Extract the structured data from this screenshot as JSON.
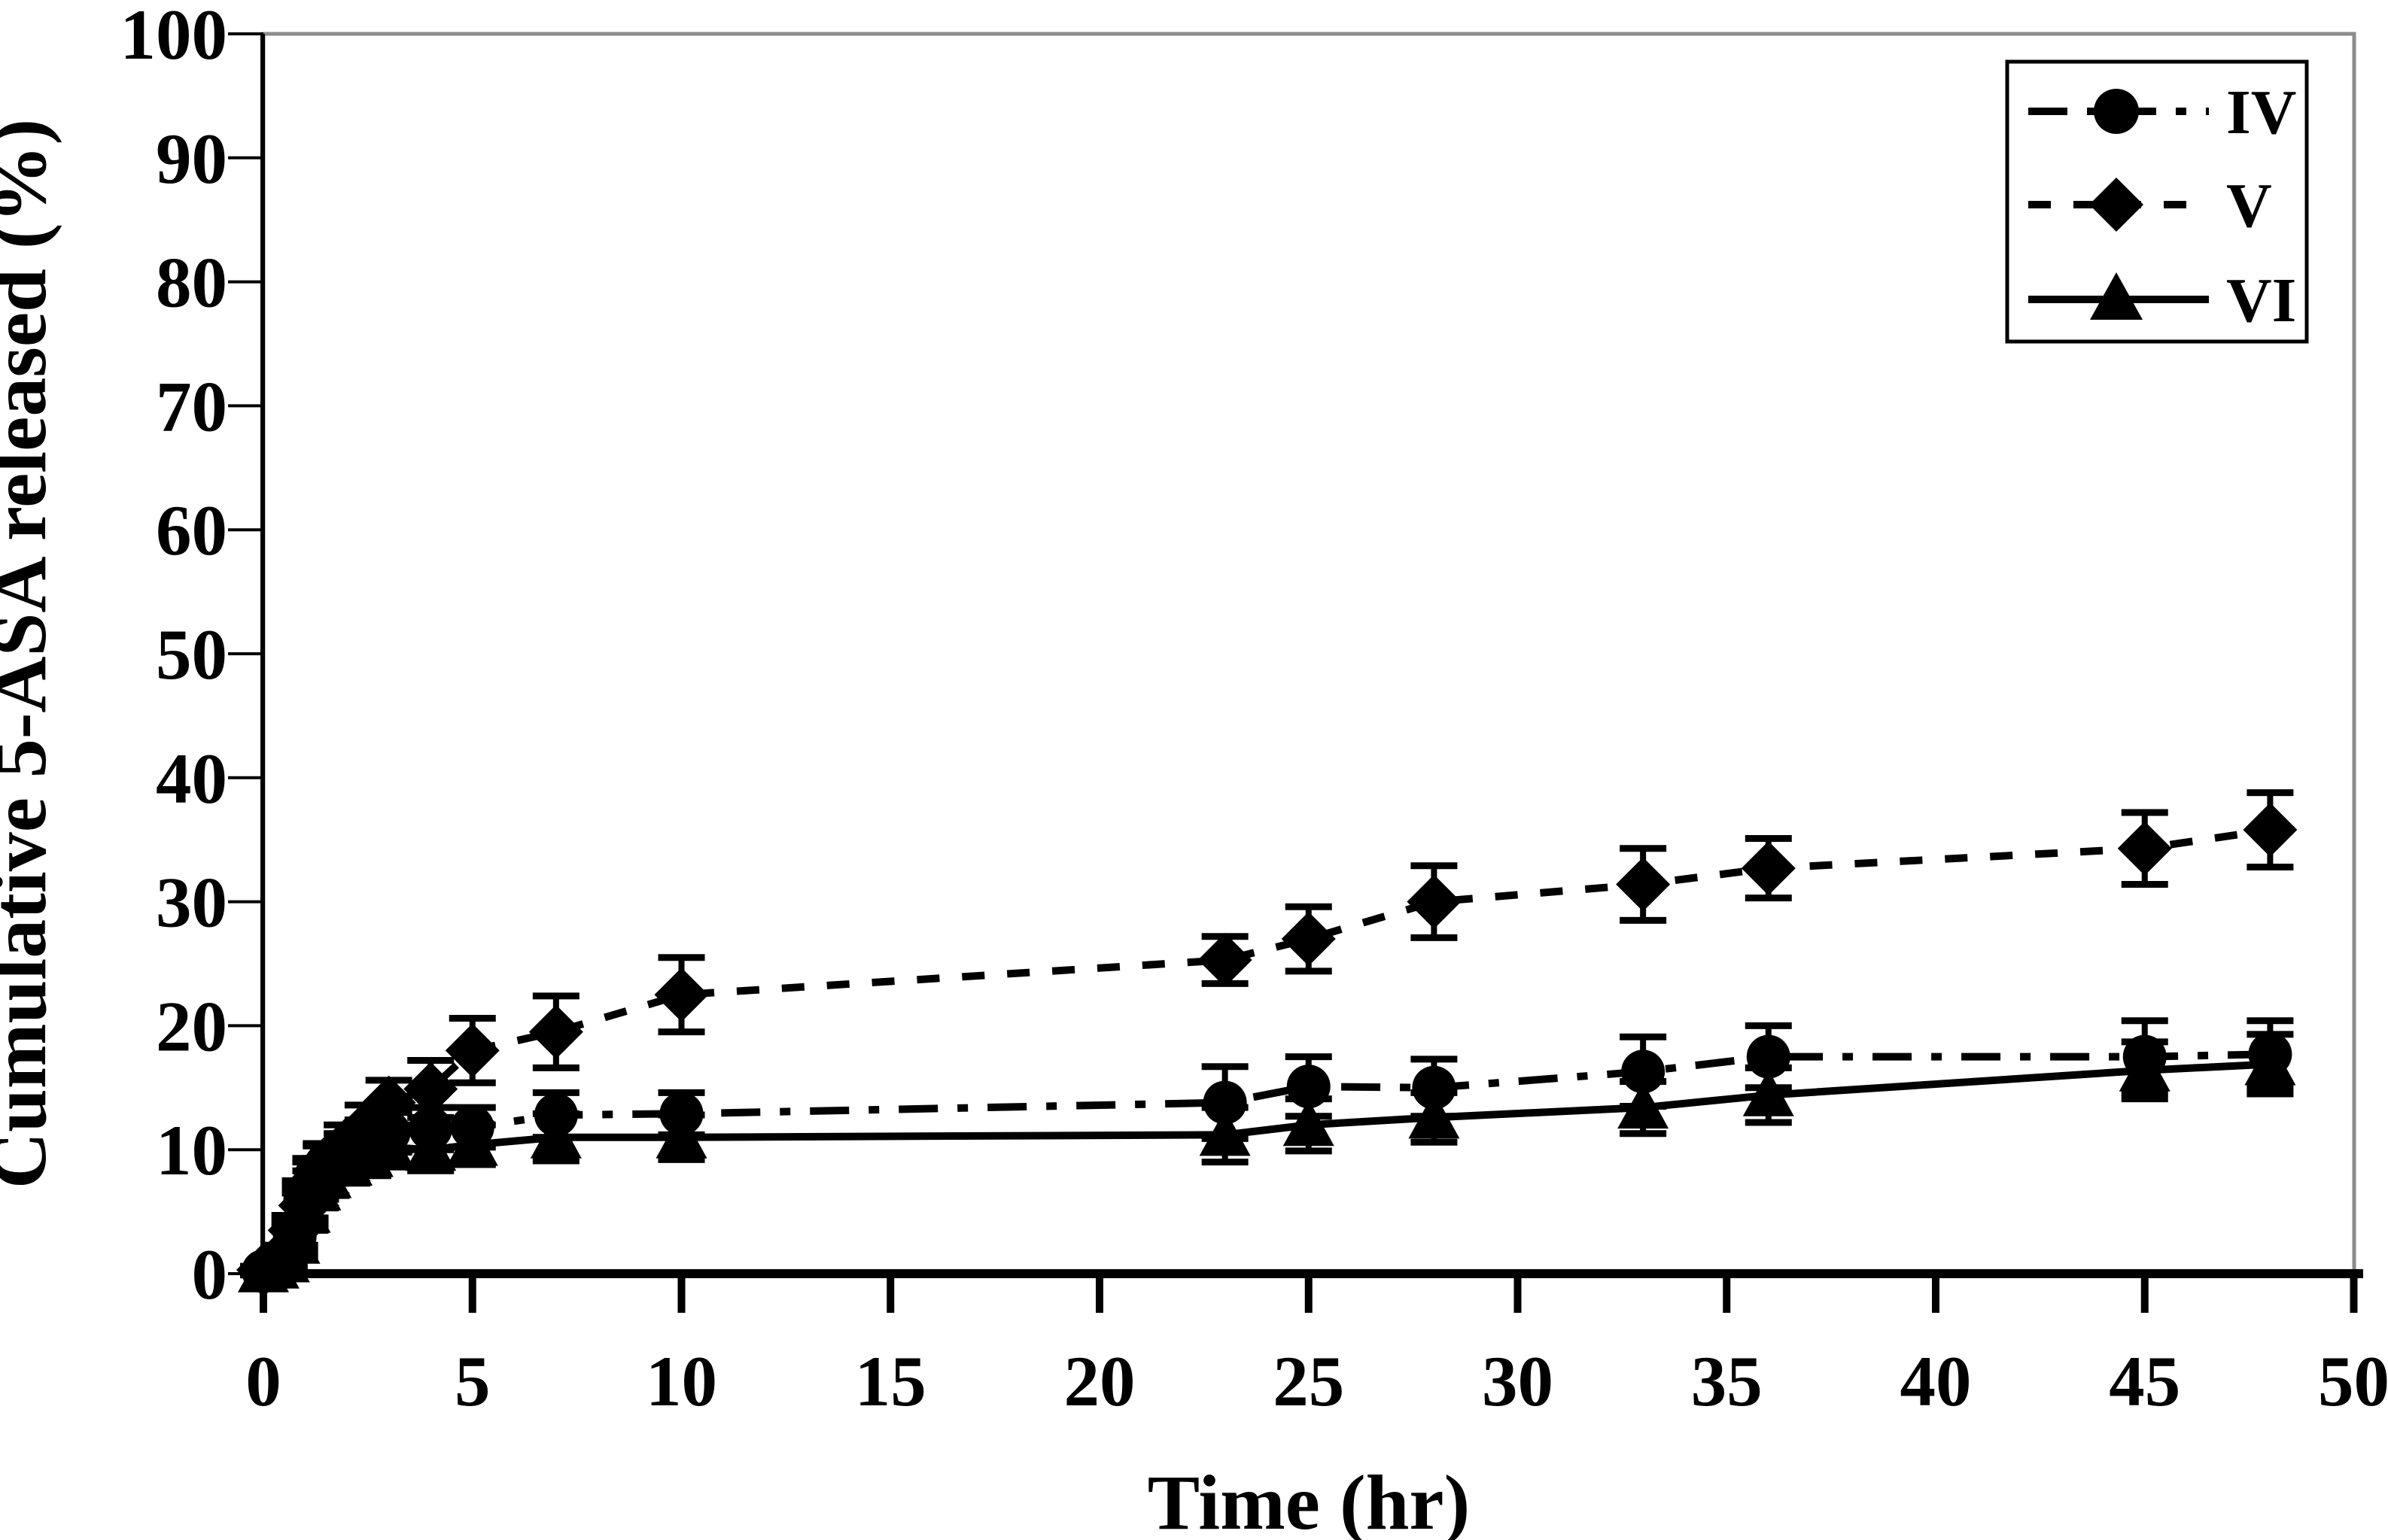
{
  "figure": {
    "background": "#ffffff",
    "plot_border_color": "#8c8c8c",
    "axis_color": "#000000",
    "marker_color": "#000000"
  },
  "legend": {
    "items": [
      {
        "label": "IV",
        "marker": "circle",
        "line_style": "dash-dot"
      },
      {
        "label": "V",
        "marker": "diamond",
        "line_style": "dashed"
      },
      {
        "label": "VI",
        "marker": "triangle",
        "line_style": "solid"
      }
    ]
  },
  "chart_data": {
    "type": "line",
    "title": "",
    "xlabel": "Time (hr)",
    "ylabel": "Cumulative 5-ASA released (%)",
    "xlim": [
      0,
      50
    ],
    "ylim": [
      0,
      100
    ],
    "xticks": [
      0,
      5,
      10,
      15,
      20,
      25,
      30,
      35,
      40,
      45,
      50
    ],
    "yticks": [
      0,
      10,
      20,
      30,
      40,
      50,
      60,
      70,
      80,
      90,
      100
    ],
    "grid": false,
    "legend_position": "top-right",
    "error_bars": true,
    "x": [
      0,
      0.25,
      0.5,
      0.75,
      1,
      1.25,
      1.5,
      2,
      2.5,
      3,
      4,
      5,
      7,
      10,
      23,
      25,
      28,
      33,
      36,
      45,
      48
    ],
    "series": [
      {
        "name": "IV",
        "marker": "circle",
        "line_style": "dash-dot",
        "values": [
          0.2,
          0.6,
          1.2,
          3.0,
          6.0,
          7.8,
          8.8,
          9.8,
          10.8,
          11.4,
          11.7,
          11.8,
          12.8,
          12.9,
          13.8,
          15.1,
          15.0,
          16.3,
          17.5,
          17.5,
          17.7
        ],
        "errors": [
          0.3,
          0.5,
          0.8,
          1.2,
          1.5,
          1.5,
          1.5,
          1.5,
          1.6,
          1.6,
          1.7,
          1.6,
          1.8,
          1.7,
          2.9,
          2.4,
          2.3,
          2.8,
          2.5,
          2.9,
          2.7
        ]
      },
      {
        "name": "V",
        "marker": "diamond",
        "line_style": "dashed",
        "values": [
          0.3,
          0.8,
          1.5,
          3.5,
          5.5,
          7.5,
          9.0,
          10.5,
          12.0,
          13.8,
          14.9,
          18.0,
          19.5,
          22.5,
          25.3,
          27.0,
          30.0,
          31.4,
          32.7,
          34.3,
          35.8
        ],
        "errors": [
          0.3,
          0.5,
          0.8,
          1.2,
          1.5,
          1.5,
          1.5,
          1.5,
          1.6,
          1.8,
          2.3,
          2.6,
          2.9,
          3.0,
          1.9,
          2.6,
          2.9,
          2.9,
          2.4,
          2.9,
          3.0
        ]
      },
      {
        "name": "VI",
        "marker": "triangle",
        "line_style": "solid",
        "values": [
          0.2,
          0.5,
          1.0,
          2.5,
          5.0,
          6.8,
          7.8,
          8.8,
          9.5,
          10.2,
          10.0,
          10.4,
          11.0,
          11.0,
          11.2,
          12.0,
          12.6,
          13.4,
          14.4,
          16.4,
          16.9
        ],
        "errors": [
          0.3,
          0.5,
          0.8,
          1.2,
          1.5,
          1.5,
          1.5,
          1.5,
          1.6,
          1.6,
          1.7,
          1.6,
          1.9,
          1.8,
          2.2,
          2.1,
          2.0,
          2.1,
          2.2,
          2.3,
          2.4
        ]
      }
    ]
  }
}
